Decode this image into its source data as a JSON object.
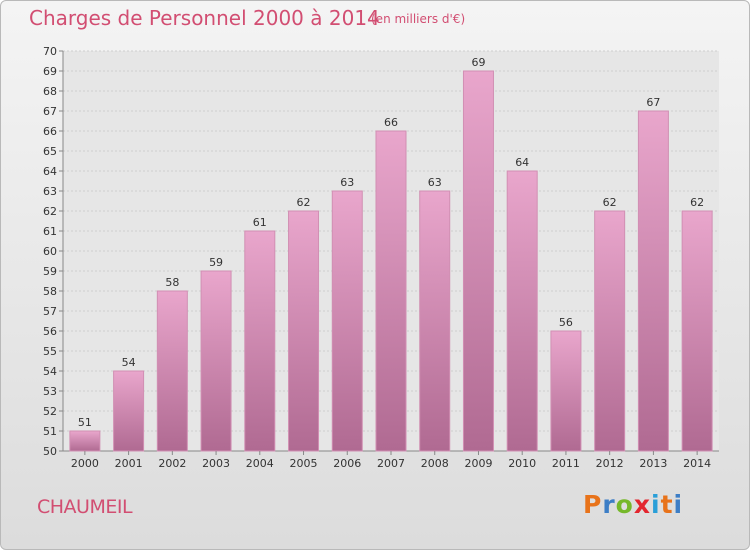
{
  "header": {
    "title": "Charges de Personnel 2000 à 2014",
    "subtitle": "(en milliers d'€)"
  },
  "footer": {
    "commune": "CHAUMEIL",
    "logo_text": "Proxiti",
    "logo_colors": [
      "#e8731a",
      "#3d7ec6",
      "#76b82a",
      "#e3262f",
      "#2a9fd8",
      "#e8731a",
      "#3d7ec6"
    ]
  },
  "colors": {
    "bar_top": "#e9a6cc",
    "bar_bottom": "#b06a92",
    "bar_stroke": "#d18fb3",
    "text": "#333333",
    "accent": "#d24e72",
    "grid": "#cfcfcf"
  },
  "chart_data": {
    "type": "bar",
    "categories": [
      "2000",
      "2001",
      "2002",
      "2003",
      "2004",
      "2005",
      "2006",
      "2007",
      "2008",
      "2009",
      "2010",
      "2011",
      "2012",
      "2013",
      "2014"
    ],
    "values": [
      51,
      54,
      58,
      59,
      61,
      62,
      63,
      66,
      63,
      69,
      64,
      56,
      62,
      67,
      62
    ],
    "ylim": [
      50,
      70
    ],
    "yticks": [
      50,
      51,
      52,
      53,
      54,
      55,
      56,
      57,
      58,
      59,
      60,
      61,
      62,
      63,
      64,
      65,
      66,
      67,
      68,
      69,
      70
    ],
    "grid": true,
    "title": "Charges de Personnel 2000 à 2014",
    "xlabel": "",
    "ylabel": ""
  }
}
